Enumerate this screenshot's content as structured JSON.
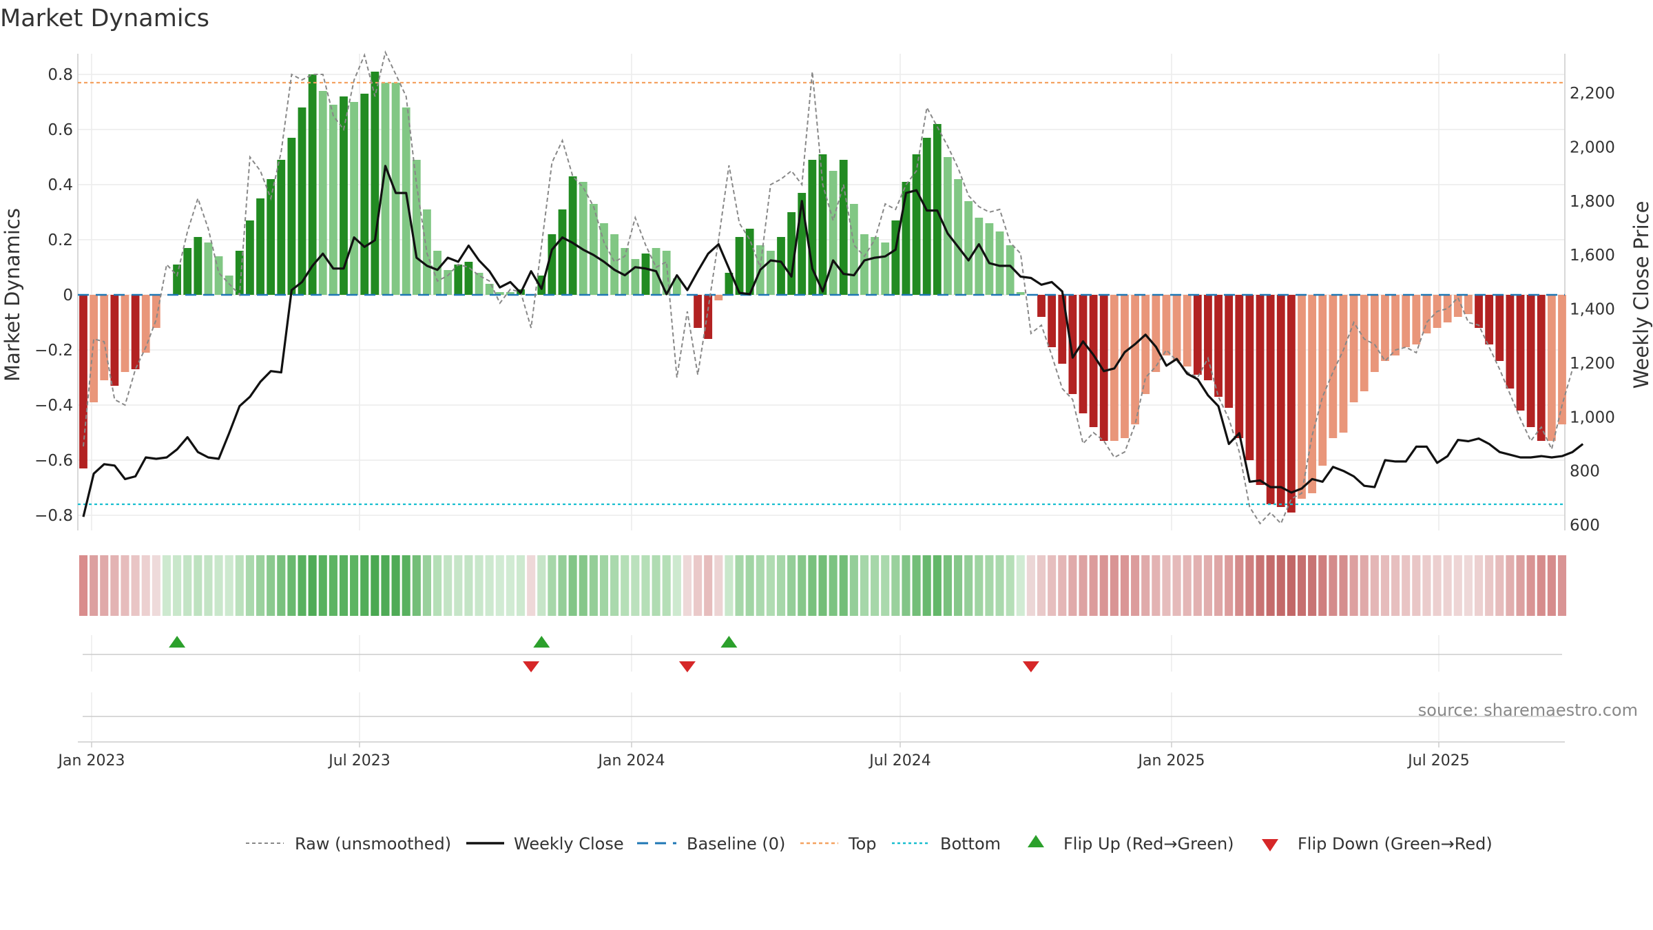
{
  "chart_data": {
    "type": "bar",
    "title": "Market Dynamics",
    "ylabel": "Market Dynamics",
    "y2label": "Weekly Close Price",
    "ylim": [
      -0.86,
      0.88
    ],
    "y2lim": [
      560,
      2325
    ],
    "yticks": [
      "0.8",
      "0.6",
      "0.4",
      "0.2",
      "0",
      "−0.2",
      "−0.4",
      "−0.6",
      "−0.8"
    ],
    "y2ticks": [
      "2,200",
      "2,000",
      "1,800",
      "1,600",
      "1,400",
      "1,200",
      "1,000",
      "800",
      "600"
    ],
    "xticks": [
      "Jan 2023",
      "Jul 2023",
      "Jan 2024",
      "Jul 2024",
      "Jan 2025",
      "Jul 2025"
    ],
    "top_level": 0.77,
    "bottom_level": -0.76,
    "colors": {
      "strong_green": "#228b22",
      "light_green": "#81c784",
      "strong_red": "#b22222",
      "light_red": "#e9967a",
      "close": "#111111",
      "raw": "#888888",
      "baseline": "#1f77b4",
      "top": "#f4a261",
      "bottom": "#17becf",
      "flip_up": "#2ca02c",
      "flip_down": "#d62728"
    },
    "bars": [
      -0.63,
      -0.39,
      -0.31,
      -0.33,
      -0.28,
      -0.27,
      -0.21,
      -0.12,
      0.0,
      0.11,
      0.17,
      0.21,
      0.19,
      0.14,
      0.07,
      0.16,
      0.27,
      0.35,
      0.42,
      0.49,
      0.57,
      0.68,
      0.8,
      0.74,
      0.69,
      0.72,
      0.7,
      0.73,
      0.81,
      0.77,
      0.77,
      0.68,
      0.49,
      0.31,
      0.16,
      0.09,
      0.11,
      0.12,
      0.08,
      0.04,
      0.01,
      0.01,
      0.02,
      0.0,
      0.07,
      0.22,
      0.31,
      0.43,
      0.41,
      0.33,
      0.26,
      0.22,
      0.17,
      0.13,
      0.15,
      0.17,
      0.16,
      0.06,
      0.0,
      -0.12,
      -0.16,
      -0.02,
      0.08,
      0.21,
      0.24,
      0.18,
      0.16,
      0.21,
      0.3,
      0.37,
      0.49,
      0.51,
      0.45,
      0.49,
      0.33,
      0.22,
      0.21,
      0.19,
      0.27,
      0.41,
      0.51,
      0.57,
      0.62,
      0.5,
      0.42,
      0.34,
      0.28,
      0.26,
      0.23,
      0.18,
      0.01,
      0.0,
      -0.08,
      -0.19,
      -0.25,
      -0.36,
      -0.43,
      -0.48,
      -0.53,
      -0.53,
      -0.52,
      -0.47,
      -0.36,
      -0.28,
      -0.22,
      -0.24,
      -0.26,
      -0.29,
      -0.31,
      -0.37,
      -0.41,
      -0.52,
      -0.6,
      -0.69,
      -0.76,
      -0.77,
      -0.79,
      -0.74,
      -0.72,
      -0.62,
      -0.52,
      -0.5,
      -0.39,
      -0.35,
      -0.28,
      -0.24,
      -0.22,
      -0.19,
      -0.18,
      -0.14,
      -0.12,
      -0.1,
      -0.08,
      -0.07,
      -0.12,
      -0.18,
      -0.24,
      -0.34,
      -0.42,
      -0.48,
      -0.53,
      -0.53,
      -0.47
    ],
    "bar_shade": [
      "s",
      "l",
      "l",
      "s",
      "l",
      "s",
      "l",
      "l",
      "l",
      "s",
      "s",
      "s",
      "l",
      "l",
      "l",
      "s",
      "s",
      "s",
      "s",
      "s",
      "s",
      "s",
      "s",
      "l",
      "l",
      "s",
      "l",
      "s",
      "s",
      "l",
      "l",
      "l",
      "l",
      "l",
      "l",
      "l",
      "s",
      "s",
      "l",
      "l",
      "l",
      "l",
      "s",
      "l",
      "s",
      "s",
      "s",
      "s",
      "l",
      "l",
      "l",
      "l",
      "l",
      "l",
      "s",
      "l",
      "l",
      "l",
      "l",
      "s",
      "s",
      "l",
      "s",
      "s",
      "s",
      "l",
      "l",
      "s",
      "s",
      "s",
      "s",
      "s",
      "l",
      "s",
      "l",
      "l",
      "l",
      "l",
      "s",
      "s",
      "s",
      "s",
      "s",
      "l",
      "l",
      "l",
      "l",
      "l",
      "l",
      "l",
      "l",
      "l",
      "s",
      "s",
      "s",
      "s",
      "s",
      "s",
      "s",
      "l",
      "l",
      "l",
      "l",
      "l",
      "l",
      "l",
      "l",
      "s",
      "s",
      "s",
      "s",
      "s",
      "s",
      "s",
      "s",
      "s",
      "s",
      "l",
      "l",
      "l",
      "l",
      "l",
      "l",
      "l",
      "l",
      "l",
      "l",
      "l",
      "l",
      "l",
      "l",
      "l",
      "l",
      "l",
      "s",
      "s",
      "s",
      "s",
      "s",
      "s",
      "s",
      "l"
    ],
    "raw": [
      -0.55,
      -0.16,
      -0.17,
      -0.38,
      -0.4,
      -0.27,
      -0.19,
      -0.09,
      0.11,
      0.07,
      0.23,
      0.35,
      0.24,
      0.08,
      0.04,
      0.0,
      0.5,
      0.45,
      0.35,
      0.52,
      0.8,
      0.78,
      0.8,
      0.8,
      0.65,
      0.6,
      0.78,
      0.87,
      0.72,
      0.88,
      0.8,
      0.72,
      0.4,
      0.15,
      0.05,
      0.07,
      0.11,
      0.1,
      0.07,
      0.05,
      -0.03,
      0.02,
      0.01,
      -0.12,
      0.18,
      0.48,
      0.56,
      0.43,
      0.39,
      0.32,
      0.19,
      0.12,
      0.14,
      0.28,
      0.18,
      0.1,
      0.12,
      -0.3,
      -0.06,
      -0.29,
      -0.05,
      0.2,
      0.47,
      0.26,
      0.2,
      0.1,
      0.4,
      0.42,
      0.45,
      0.4,
      0.81,
      0.4,
      0.27,
      0.4,
      0.18,
      0.14,
      0.2,
      0.33,
      0.31,
      0.4,
      0.45,
      0.68,
      0.61,
      0.54,
      0.46,
      0.36,
      0.32,
      0.3,
      0.31,
      0.19,
      0.15,
      -0.14,
      -0.11,
      -0.22,
      -0.34,
      -0.38,
      -0.54,
      -0.5,
      -0.53,
      -0.59,
      -0.57,
      -0.47,
      -0.3,
      -0.26,
      -0.2,
      -0.24,
      -0.28,
      -0.3,
      -0.23,
      -0.37,
      -0.45,
      -0.57,
      -0.77,
      -0.83,
      -0.79,
      -0.83,
      -0.74,
      -0.72,
      -0.51,
      -0.37,
      -0.28,
      -0.2,
      -0.1,
      -0.16,
      -0.18,
      -0.24,
      -0.2,
      -0.19,
      -0.21,
      -0.1,
      -0.06,
      -0.05,
      -0.01,
      -0.1,
      -0.11,
      -0.19,
      -0.27,
      -0.36,
      -0.45,
      -0.53,
      -0.48,
      -0.56,
      -0.4,
      -0.27
    ],
    "close": [
      630,
      790,
      825,
      820,
      770,
      780,
      850,
      845,
      850,
      880,
      925,
      870,
      850,
      845,
      940,
      1040,
      1075,
      1130,
      1170,
      1165,
      1470,
      1500,
      1560,
      1605,
      1550,
      1550,
      1665,
      1630,
      1655,
      1930,
      1830,
      1830,
      1590,
      1560,
      1545,
      1590,
      1575,
      1635,
      1580,
      1540,
      1480,
      1500,
      1460,
      1540,
      1475,
      1620,
      1665,
      1645,
      1620,
      1600,
      1575,
      1545,
      1525,
      1555,
      1550,
      1540,
      1455,
      1525,
      1470,
      1540,
      1605,
      1640,
      1550,
      1460,
      1455,
      1545,
      1580,
      1575,
      1520,
      1800,
      1550,
      1465,
      1580,
      1530,
      1525,
      1580,
      1590,
      1595,
      1620,
      1830,
      1840,
      1765,
      1765,
      1680,
      1630,
      1580,
      1640,
      1570,
      1560,
      1560,
      1520,
      1515,
      1490,
      1500,
      1465,
      1220,
      1280,
      1230,
      1170,
      1180,
      1240,
      1270,
      1305,
      1260,
      1190,
      1215,
      1160,
      1140,
      1080,
      1040,
      900,
      940,
      760,
      765,
      740,
      740,
      720,
      735,
      770,
      760,
      815,
      800,
      780,
      745,
      740,
      840,
      835,
      835,
      890,
      890,
      830,
      855,
      915,
      910,
      920,
      900,
      870,
      860,
      850,
      850,
      855,
      850,
      855,
      870,
      900
    ],
    "strip_colors": [
      "#d98c8c",
      "#dca0a0",
      "#e0a9a9",
      "#e3b3b3",
      "#e6bcbc",
      "#e9c5c5",
      "#ecd0d0",
      "#eedada",
      "#cde9cf",
      "#c9e7cb",
      "#c3e4c5",
      "#bee2c0",
      "#c3e4c5",
      "#c9e7cb",
      "#cde9cf",
      "#bbe1bd",
      "#aad9ad",
      "#9ad19d",
      "#8ac98e",
      "#79c17e",
      "#69b96f",
      "#58b15f",
      "#4fab56",
      "#58b15f",
      "#5db463",
      "#58b15f",
      "#5db463",
      "#52ad59",
      "#4aa851",
      "#4fab56",
      "#4fab56",
      "#58b15f",
      "#73be78",
      "#9ad19d",
      "#b5dfb7",
      "#c3e4c5",
      "#c6e5c8",
      "#c3e4c5",
      "#c9e7cb",
      "#cde9cf",
      "#d1ebd3",
      "#d1ebd3",
      "#cde9cf",
      "#eed8d8",
      "#c6e5c8",
      "#a6d7a9",
      "#94ce98",
      "#82c587",
      "#86c78a",
      "#94ce98",
      "#a1d5a4",
      "#aad9ad",
      "#b5dfb7",
      "#bbe1bd",
      "#b5dfb7",
      "#b0dcb2",
      "#b5dfb7",
      "#cde9cf",
      "#eed8d8",
      "#eac9c9",
      "#e6bdbd",
      "#ecd3d3",
      "#c9e7cb",
      "#a6d7a9",
      "#a1d5a4",
      "#aad9ad",
      "#b0dcb2",
      "#a6d7a9",
      "#94ce98",
      "#86c78a",
      "#79c17e",
      "#73be78",
      "#7cc381",
      "#73be78",
      "#94ce98",
      "#a6d7a9",
      "#a6d7a9",
      "#aad9ad",
      "#9ad19d",
      "#82c587",
      "#73be78",
      "#69b96f",
      "#63b769",
      "#79c17e",
      "#86c78a",
      "#94ce98",
      "#9fd4a2",
      "#a6d7a9",
      "#aad9ad",
      "#b5dfb7",
      "#d1ebd3",
      "#ecd6d6",
      "#e9c9c9",
      "#e6bebe",
      "#e4b6b6",
      "#e0aaaa",
      "#dda2a2",
      "#dc9c9c",
      "#d99494",
      "#d99494",
      "#da9696",
      "#dc9c9c",
      "#e0aaaa",
      "#e3b3b3",
      "#e6bcbc",
      "#e5baba",
      "#e4b6b6",
      "#e2b1b1",
      "#e1aeae",
      "#dea6a6",
      "#dc9c9c",
      "#d48b8b",
      "#cf7f7f",
      "#c87373",
      "#c46b6b",
      "#c36969",
      "#c26767",
      "#c66f6f",
      "#c87373",
      "#cf7f7f",
      "#d48b8b",
      "#d58e8e",
      "#dda0a0",
      "#e0a9a9",
      "#e4b6b6",
      "#e6bcbc",
      "#e7bfbf",
      "#e9c4c4",
      "#e9c6c6",
      "#ebcccc",
      "#eccfcf",
      "#edd2d2",
      "#eed5d5",
      "#eed8d8",
      "#ecd0d0",
      "#e9c6c6",
      "#e6bcbc",
      "#e1aeae",
      "#dca0a0",
      "#d99494",
      "#d68c8c",
      "#d68c8c",
      "#d99494"
    ],
    "flips_up_at": [
      9,
      44,
      62
    ],
    "flips_down_at": [
      43,
      58,
      91
    ],
    "legend": {
      "raw": "Raw (unsmoothed)",
      "close": "Weekly Close",
      "baseline": "Baseline (0)",
      "top": "Top",
      "bottom": "Bottom",
      "flip_up": "Flip Up (Red→Green)",
      "flip_down": "Flip Down (Green→Red)"
    },
    "source": "source: sharemaestro.com"
  }
}
